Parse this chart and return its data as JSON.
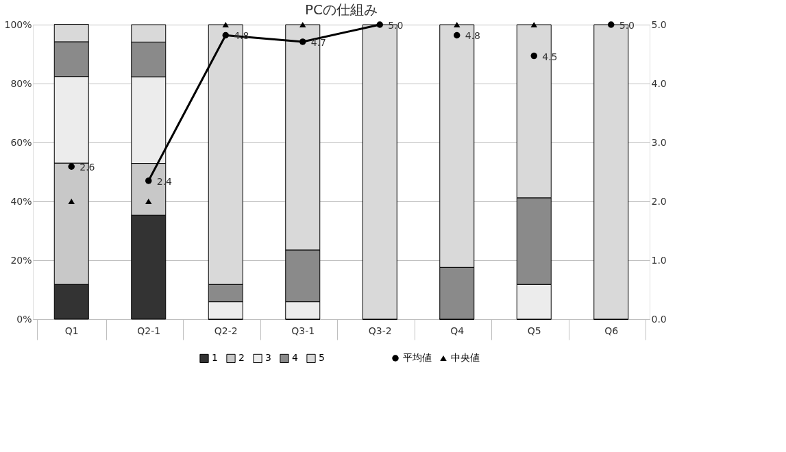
{
  "chart_data": {
    "type": "bar",
    "title": "PCの仕組み",
    "stacked": true,
    "grid": "y",
    "legend": "bottom",
    "categories": [
      "Q1",
      "Q2-1",
      "Q2-2",
      "Q3-1",
      "Q3-2",
      "Q4",
      "Q5",
      "Q6"
    ],
    "ylim": [
      0,
      100
    ],
    "yticks": [
      {
        "value": 0,
        "label": "0%"
      },
      {
        "value": 20,
        "label": "20%"
      },
      {
        "value": 40,
        "label": "40%"
      },
      {
        "value": 60,
        "label": "60%"
      },
      {
        "value": 80,
        "label": "80%"
      },
      {
        "value": 100,
        "label": "100%"
      }
    ],
    "y2lim": [
      0,
      5
    ],
    "y2ticks": [
      {
        "value": 0,
        "label": "0.0"
      },
      {
        "value": 1,
        "label": "1.0"
      },
      {
        "value": 2,
        "label": "2.0"
      },
      {
        "value": 3,
        "label": "3.0"
      },
      {
        "value": 4,
        "label": "4.0"
      },
      {
        "value": 5,
        "label": "5.0"
      }
    ],
    "series": [
      {
        "name": "1",
        "color": "#333333",
        "values": [
          11.8,
          35.3,
          0,
          0,
          0,
          0,
          0,
          0
        ]
      },
      {
        "name": "2",
        "color": "#c8c8c8",
        "values": [
          41.2,
          17.6,
          0,
          0,
          0,
          0,
          0,
          0
        ]
      },
      {
        "name": "3",
        "color": "#ececec",
        "values": [
          29.4,
          29.4,
          5.9,
          5.9,
          0,
          0,
          11.8,
          0
        ]
      },
      {
        "name": "4",
        "color": "#8a8a8a",
        "values": [
          11.8,
          11.8,
          5.9,
          17.6,
          0,
          17.6,
          29.4,
          0
        ]
      },
      {
        "name": "5",
        "color": "#d9d9d9",
        "values": [
          5.9,
          5.9,
          88.2,
          76.5,
          100,
          82.4,
          58.8,
          100
        ]
      },
      {
        "name": "平均値",
        "type": "line",
        "axis": "y2",
        "marker": "circle",
        "color": "#000000",
        "values": [
          null,
          2.35,
          4.82,
          4.71,
          5.0,
          null,
          null,
          null
        ],
        "value_labels": [
          null,
          "2.4",
          "4.8",
          "4.7",
          "5.0",
          null,
          null,
          null
        ]
      },
      {
        "type": "scatter",
        "axis": "y2",
        "marker": "circle",
        "color": "#000000",
        "values": [
          2.59,
          null,
          null,
          null,
          null,
          4.82,
          4.47,
          5.0
        ],
        "value_labels": [
          "2.6",
          null,
          null,
          null,
          null,
          "4.8",
          "4.5",
          "5.0"
        ]
      },
      {
        "name": "中央値",
        "type": "scatter",
        "axis": "y2",
        "marker": "triangle",
        "color": "#000000",
        "values": [
          2,
          2,
          5,
          5,
          null,
          5,
          5,
          null
        ]
      }
    ]
  }
}
